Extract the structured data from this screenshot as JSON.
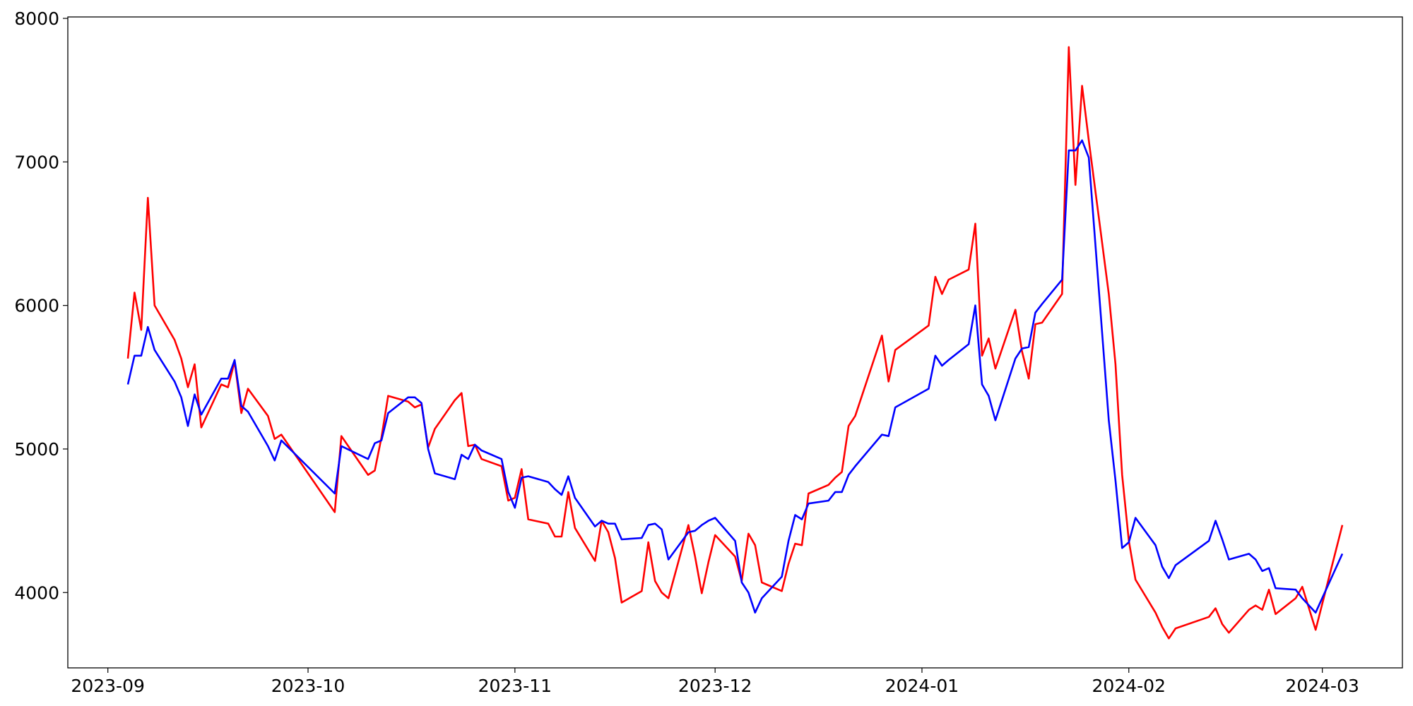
{
  "chart_data": {
    "type": "line",
    "x": [
      "2023-09-04",
      "2023-09-05",
      "2023-09-06",
      "2023-09-07",
      "2023-09-08",
      "2023-09-11",
      "2023-09-12",
      "2023-09-13",
      "2023-09-14",
      "2023-09-15",
      "2023-09-18",
      "2023-09-19",
      "2023-09-20",
      "2023-09-21",
      "2023-09-22",
      "2023-09-25",
      "2023-09-26",
      "2023-09-27",
      "2023-10-05",
      "2023-10-06",
      "2023-10-10",
      "2023-10-11",
      "2023-10-12",
      "2023-10-13",
      "2023-10-16",
      "2023-10-17",
      "2023-10-18",
      "2023-10-19",
      "2023-10-20",
      "2023-10-23",
      "2023-10-24",
      "2023-10-25",
      "2023-10-26",
      "2023-10-27",
      "2023-10-30",
      "2023-10-31",
      "2023-11-01",
      "2023-11-02",
      "2023-11-03",
      "2023-11-06",
      "2023-11-07",
      "2023-11-08",
      "2023-11-09",
      "2023-11-10",
      "2023-11-13",
      "2023-11-14",
      "2023-11-15",
      "2023-11-16",
      "2023-11-17",
      "2023-11-20",
      "2023-11-21",
      "2023-11-22",
      "2023-11-23",
      "2023-11-24",
      "2023-11-27",
      "2023-11-28",
      "2023-11-29",
      "2023-11-30",
      "2023-12-01",
      "2023-12-04",
      "2023-12-05",
      "2023-12-06",
      "2023-12-07",
      "2023-12-08",
      "2023-12-11",
      "2023-12-12",
      "2023-12-13",
      "2023-12-14",
      "2023-12-15",
      "2023-12-18",
      "2023-12-19",
      "2023-12-20",
      "2023-12-21",
      "2023-12-22",
      "2023-12-26",
      "2023-12-27",
      "2023-12-28",
      "2024-01-02",
      "2024-01-03",
      "2024-01-04",
      "2024-01-05",
      "2024-01-08",
      "2024-01-09",
      "2024-01-10",
      "2024-01-11",
      "2024-01-12",
      "2024-01-15",
      "2024-01-16",
      "2024-01-17",
      "2024-01-18",
      "2024-01-19",
      "2024-01-22",
      "2024-01-23",
      "2024-01-24",
      "2024-01-25",
      "2024-01-26",
      "2024-01-29",
      "2024-01-30",
      "2024-01-31",
      "2024-02-01",
      "2024-02-02",
      "2024-02-05",
      "2024-02-06",
      "2024-02-07",
      "2024-02-08",
      "2024-02-13",
      "2024-02-14",
      "2024-02-15",
      "2024-02-16",
      "2024-02-19",
      "2024-02-20",
      "2024-02-21",
      "2024-02-22",
      "2024-02-23",
      "2024-02-26",
      "2024-02-27",
      "2024-02-29",
      "2024-03-04"
    ],
    "series": [
      {
        "color": "#ff0000",
        "values": [
          5630,
          6090,
          5830,
          6750,
          6000,
          5760,
          5630,
          5430,
          5590,
          5150,
          5450,
          5430,
          5610,
          5250,
          5420,
          5230,
          5070,
          5100,
          4560,
          5090,
          4820,
          4850,
          5080,
          5370,
          5330,
          5290,
          5310,
          5010,
          5140,
          5340,
          5390,
          5020,
          5030,
          4930,
          4880,
          4640,
          4660,
          4860,
          4510,
          4480,
          4390,
          4390,
          4700,
          4450,
          4220,
          4500,
          4420,
          4240,
          3930,
          4010,
          4350,
          4080,
          4000,
          3960,
          4470,
          4250,
          3995,
          4210,
          4400,
          4250,
          4080,
          4410,
          4330,
          4070,
          4010,
          4200,
          4340,
          4330,
          4690,
          4750,
          4800,
          4840,
          5160,
          5230,
          5790,
          5470,
          5690,
          5860,
          6200,
          6080,
          6180,
          6250,
          6570,
          5650,
          5770,
          5560,
          5970,
          5680,
          5490,
          5870,
          5880,
          6080,
          7800,
          6840,
          7530,
          7150,
          6080,
          5590,
          4820,
          4360,
          4090,
          3860,
          3760,
          3680,
          3750,
          3830,
          3890,
          3780,
          3720,
          3880,
          3910,
          3880,
          4020,
          3850,
          3960,
          4040,
          3740,
          4470
        ]
      },
      {
        "color": "#0000ff",
        "values": [
          5450,
          5650,
          5650,
          5850,
          5690,
          5470,
          5360,
          5160,
          5380,
          5240,
          5490,
          5490,
          5620,
          5300,
          5260,
          5020,
          4920,
          5060,
          4690,
          5020,
          4930,
          5040,
          5060,
          5250,
          5360,
          5360,
          5320,
          5000,
          4830,
          4790,
          4960,
          4930,
          5030,
          4990,
          4930,
          4700,
          4590,
          4800,
          4810,
          4770,
          4720,
          4680,
          4810,
          4660,
          4460,
          4500,
          4480,
          4480,
          4370,
          4380,
          4470,
          4480,
          4440,
          4230,
          4420,
          4430,
          4470,
          4500,
          4520,
          4360,
          4070,
          4000,
          3860,
          3960,
          4110,
          4360,
          4540,
          4510,
          4620,
          4640,
          4700,
          4700,
          4820,
          4880,
          5100,
          5090,
          5290,
          5420,
          5650,
          5580,
          5620,
          5730,
          6000,
          5450,
          5370,
          5200,
          5630,
          5700,
          5710,
          5950,
          6010,
          6180,
          7080,
          7080,
          7150,
          7030,
          5200,
          4780,
          4310,
          4350,
          4520,
          4330,
          4180,
          4100,
          4190,
          4360,
          4500,
          4370,
          4230,
          4270,
          4230,
          4150,
          4170,
          4030,
          4020,
          3960,
          3860,
          4270
        ]
      }
    ],
    "xlim": [
      "2023-08-26",
      "2024-03-13"
    ],
    "xticks": [
      {
        "value": "2023-09-01",
        "label": "2023-09"
      },
      {
        "value": "2023-10-01",
        "label": "2023-10"
      },
      {
        "value": "2023-11-01",
        "label": "2023-11"
      },
      {
        "value": "2023-12-01",
        "label": "2023-12"
      },
      {
        "value": "2024-01-01",
        "label": "2024-01"
      },
      {
        "value": "2024-02-01",
        "label": "2024-02"
      },
      {
        "value": "2024-03-01",
        "label": "2024-03"
      }
    ],
    "ylim": [
      3475,
      8010
    ],
    "yticks": [
      4000,
      5000,
      6000,
      7000,
      8000
    ]
  }
}
